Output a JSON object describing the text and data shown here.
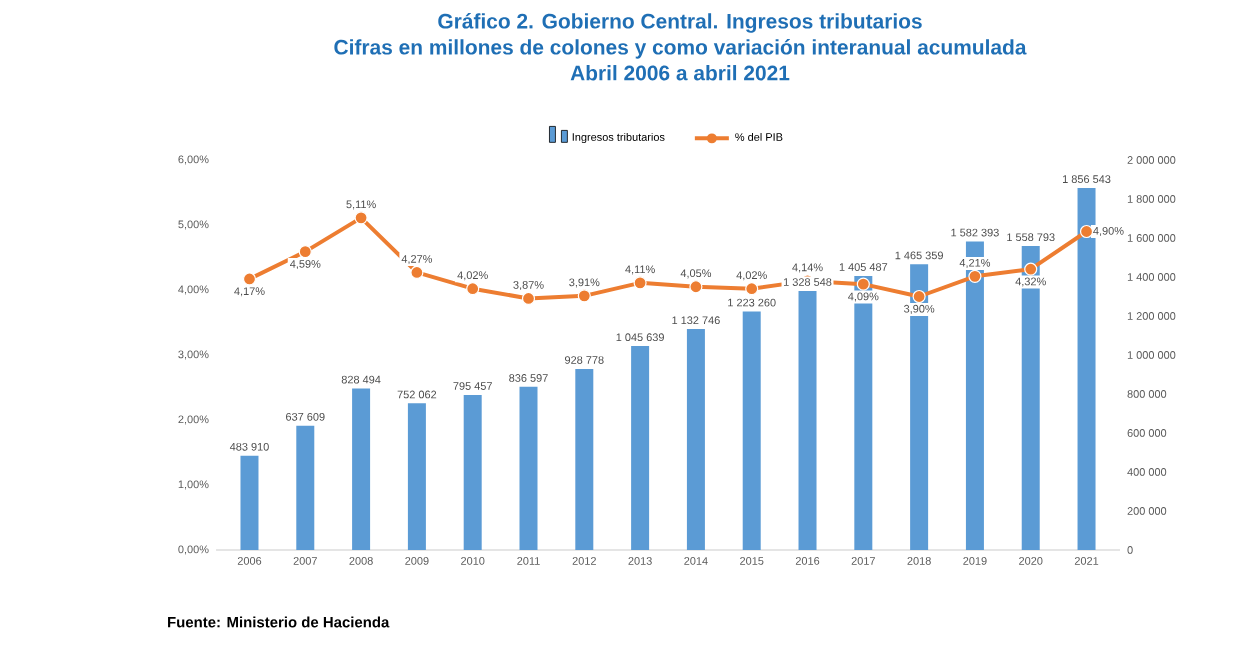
{
  "chart_data": {
    "type": "bar",
    "title": "Gráfico 2.  Gobierno Central. Ingresos tributarios",
    "subtitle": "Cifras en millones de colones y como variación interanual acumulada",
    "annotations": [
      "Abril 2006 a abril 2021",
      "Fuente: Ministerio de Hacienda"
    ],
    "categories": [
      "2006",
      "2007",
      "2008",
      "2009",
      "2010",
      "2011",
      "2012",
      "2013",
      "2014",
      "2015",
      "2016",
      "2017",
      "2018",
      "2019",
      "2020",
      "2021"
    ],
    "series": [
      {
        "name": "Ingresos tributarios",
        "axis": "y2",
        "color": "#5b9bd5",
        "values": [
          483910,
          637609,
          828494,
          752062,
          795457,
          836597,
          928778,
          1045639,
          1132746,
          1223260,
          1328548,
          1405487,
          1465359,
          1582393,
          1558793,
          1856543
        ],
        "value_labels": [
          "483 910",
          "637 609",
          "828 494",
          "752 062",
          "795 457",
          "836 597",
          "928 778",
          "1 045 639",
          "1 132 746",
          "1 223 260",
          "1 328 548",
          "1 405 487",
          "1 465 359",
          "1 582 393",
          "1 558 793",
          "1 856 543"
        ]
      },
      {
        "name": "% del PIB",
        "type": "line",
        "axis": "y",
        "color": "#ed7d31",
        "marker": "circle",
        "line_style": "solid",
        "values": [
          4.17,
          4.59,
          5.11,
          4.27,
          4.02,
          3.87,
          3.91,
          4.11,
          4.05,
          4.02,
          4.14,
          4.09,
          3.9,
          4.21,
          4.32,
          4.9
        ],
        "value_labels": [
          "4,17%",
          "4,59%",
          "5,11%",
          "4,27%",
          "4,02%",
          "3,87%",
          "3,91%",
          "4,11%",
          "4,05%",
          "4,02%",
          "4,14%",
          "4,09%",
          "3,90%",
          "4,21%",
          "4,32%",
          "4,90%"
        ]
      }
    ],
    "ylim": [
      0,
      6
    ],
    "yticks": [
      {
        "value": 0,
        "label": "0,00%"
      },
      {
        "value": 1,
        "label": "1,00%"
      },
      {
        "value": 2,
        "label": "2,00%"
      },
      {
        "value": 3,
        "label": "3,00%"
      },
      {
        "value": 4,
        "label": "4,00%"
      },
      {
        "value": 5,
        "label": "5,00%"
      },
      {
        "value": 6,
        "label": "6,00%"
      }
    ],
    "y2lim": [
      0,
      2000000
    ],
    "y2ticks": [
      {
        "value": 0,
        "label": "0"
      },
      {
        "value": 200000,
        "label": "200 000"
      },
      {
        "value": 400000,
        "label": "400 000"
      },
      {
        "value": 600000,
        "label": "600 000"
      },
      {
        "value": 800000,
        "label": "800 000"
      },
      {
        "value": 1000000,
        "label": "1 000 000"
      },
      {
        "value": 1200000,
        "label": "1 200 000"
      },
      {
        "value": 1400000,
        "label": "1 400 000"
      },
      {
        "value": 1600000,
        "label": "1 600 000"
      },
      {
        "value": 1800000,
        "label": "1 800 000"
      },
      {
        "value": 2000000,
        "label": "2 000 000"
      }
    ],
    "legend": "top"
  }
}
